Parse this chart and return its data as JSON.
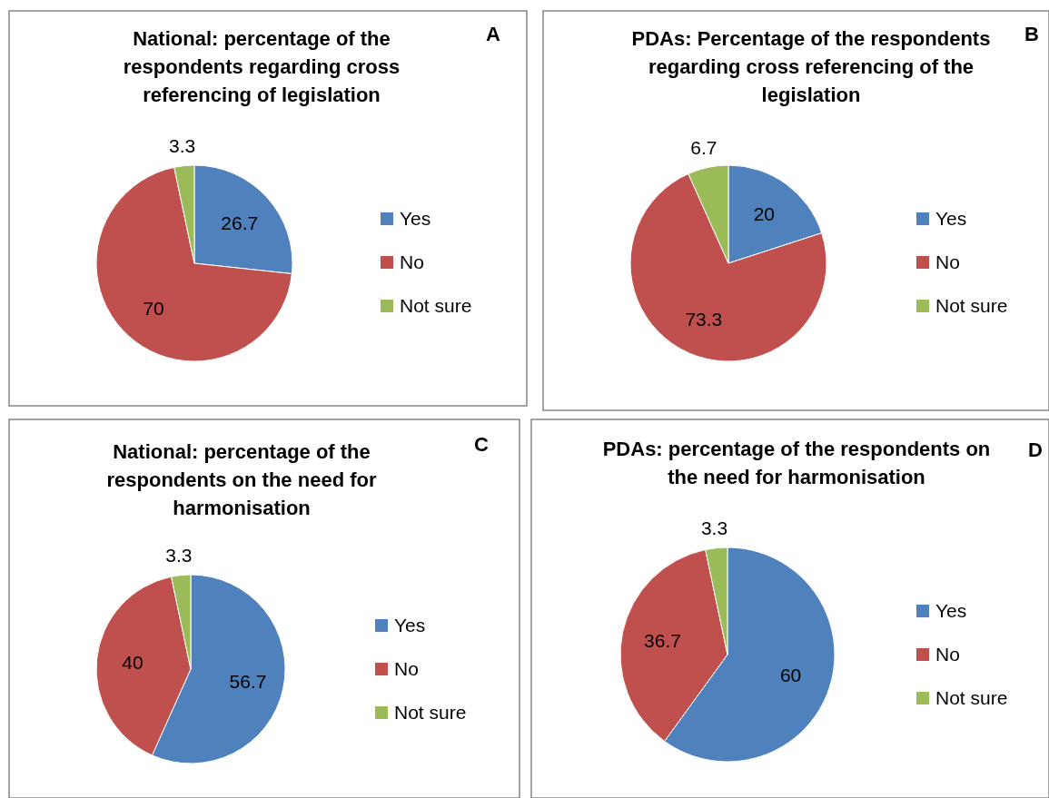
{
  "chart_data": [
    {
      "type": "pie",
      "title": "National: percentage of the respondents regarding cross referencing of legislation",
      "categories": [
        "Yes",
        "No",
        "Not sure"
      ],
      "values": [
        26.7,
        70,
        3.3
      ],
      "colors": [
        "#4f81bd",
        "#c0504d",
        "#9bbb59"
      ],
      "data_labels": true,
      "legend": "right",
      "annotations": [
        "A"
      ]
    },
    {
      "type": "pie",
      "title": "PDAs: Percentage of the respondents regarding cross referencing of the legislation",
      "categories": [
        "Yes",
        "No",
        "Not sure"
      ],
      "values": [
        20,
        73.3,
        6.7
      ],
      "colors": [
        "#4f81bd",
        "#c0504d",
        "#9bbb59"
      ],
      "data_labels": true,
      "legend": "right",
      "annotations": [
        "B"
      ]
    },
    {
      "type": "pie",
      "title": "National: percentage of the respondents on the need for harmonisation",
      "categories": [
        "Yes",
        "No",
        "Not sure"
      ],
      "values": [
        56.7,
        40,
        3.3
      ],
      "colors": [
        "#4f81bd",
        "#c0504d",
        "#9bbb59"
      ],
      "data_labels": true,
      "legend": "right",
      "annotations": [
        "C"
      ]
    },
    {
      "type": "pie",
      "title": "PDAs: percentage of the respondents on the need for harmonisation",
      "categories": [
        "Yes",
        "No",
        "Not sure"
      ],
      "values": [
        60,
        36.7,
        3.3
      ],
      "colors": [
        "#4f81bd",
        "#c0504d",
        "#9bbb59"
      ],
      "data_labels": true,
      "legend": "right",
      "annotations": [
        "D"
      ]
    }
  ]
}
